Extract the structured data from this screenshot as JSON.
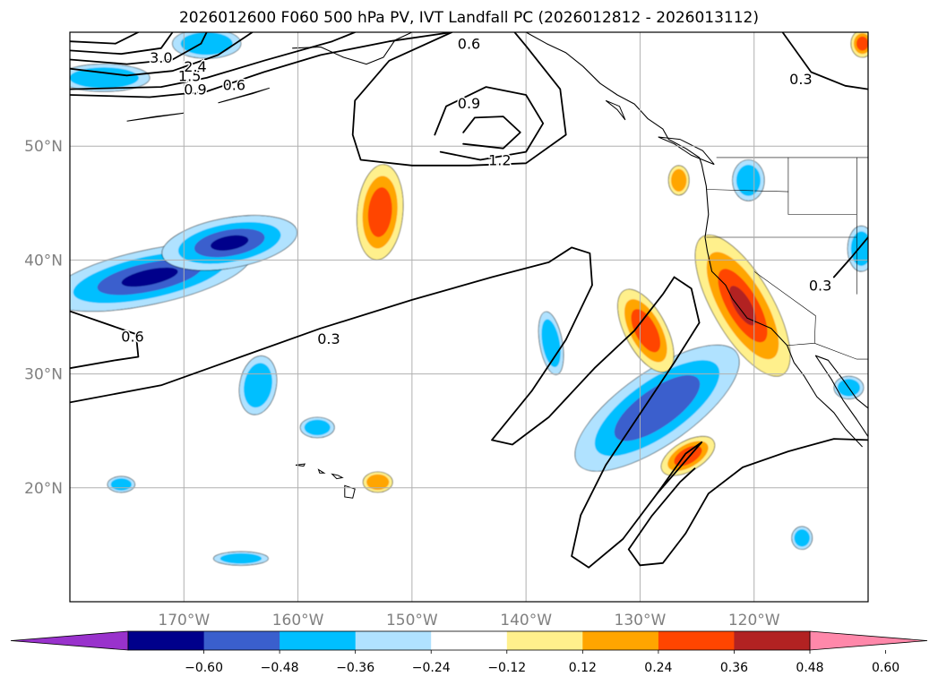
{
  "title": "2026012600 F060 500 hPa PV, IVT Landfall PC (2026012812 - 2026013112)",
  "map": {
    "lon_range": [
      -180,
      -110
    ],
    "lat_range": [
      10,
      60
    ],
    "lon_ticks": [
      {
        "value": -170,
        "label": "170°W"
      },
      {
        "value": -160,
        "label": "160°W"
      },
      {
        "value": -150,
        "label": "150°W"
      },
      {
        "value": -140,
        "label": "140°W"
      },
      {
        "value": -130,
        "label": "130°W"
      },
      {
        "value": -120,
        "label": "120°W"
      }
    ],
    "lat_ticks": [
      {
        "value": 50,
        "label": "50°N"
      },
      {
        "value": 40,
        "label": "40°N"
      },
      {
        "value": 30,
        "label": "30°N"
      },
      {
        "value": 20,
        "label": "20°N"
      }
    ],
    "grid": true
  },
  "pv_contours": {
    "levels": [
      "0.3",
      "0.6",
      "0.9",
      "1.2",
      "1.5",
      "2.4",
      "3.0"
    ],
    "labels": [
      {
        "text": "0.3",
        "lon": -157.3,
        "lat": 33.1
      },
      {
        "text": "0.3",
        "lon": -115.9,
        "lat": 55.9
      },
      {
        "text": "0.3",
        "lon": -114.2,
        "lat": 37.8
      },
      {
        "text": "0.6",
        "lon": -174.5,
        "lat": 33.3
      },
      {
        "text": "0.6",
        "lon": -165.6,
        "lat": 55.4
      },
      {
        "text": "0.6",
        "lon": -145.0,
        "lat": 59.0
      },
      {
        "text": "0.9",
        "lon": -145.0,
        "lat": 53.8
      },
      {
        "text": "0.9",
        "lon": -169.0,
        "lat": 55.0
      },
      {
        "text": "1.2",
        "lon": -142.3,
        "lat": 48.8
      },
      {
        "text": "1.5",
        "lon": -169.5,
        "lat": 56.2
      },
      {
        "text": "2.4",
        "lon": -169.0,
        "lat": 57.0
      },
      {
        "text": "3.0",
        "lon": -172.0,
        "lat": 57.8
      }
    ]
  },
  "colorbar": {
    "colors": [
      "#9932cc",
      "#00008b",
      "#3a5fcd",
      "#00bfff",
      "#b0e2ff",
      "#ffffff",
      "#fff08c",
      "#ffa500",
      "#ff4500",
      "#b22222",
      "#ff88aa"
    ],
    "tick_labels": [
      "−0.60",
      "−0.48",
      "−0.36",
      "−0.24",
      "−0.12",
      "0.12",
      "0.24",
      "0.36",
      "0.48",
      "0.60"
    ],
    "extend": "both"
  },
  "ivt_pc_regions": [
    {
      "sign": "neg",
      "lon": -173,
      "lat": 38.5,
      "rx": 9.0,
      "ry": 2.4,
      "rot": -12,
      "level": 4
    },
    {
      "sign": "neg",
      "lon": -166,
      "lat": 41.5,
      "rx": 6.0,
      "ry": 2.2,
      "rot": -10,
      "level": 4
    },
    {
      "sign": "neg",
      "lon": -128.5,
      "lat": 27.0,
      "rx": 8.5,
      "ry": 3.2,
      "rot": -35,
      "level": 3
    },
    {
      "sign": "neg",
      "lon": -163.5,
      "lat": 29.0,
      "rx": 1.6,
      "ry": 2.6,
      "rot": 10,
      "level": 2
    },
    {
      "sign": "neg",
      "lon": -137.8,
      "lat": 32.7,
      "rx": 1.0,
      "ry": 2.8,
      "rot": -10,
      "level": 2
    },
    {
      "sign": "neg",
      "lon": -120.5,
      "lat": 47.0,
      "rx": 1.4,
      "ry": 1.8,
      "rot": 0,
      "level": 2
    },
    {
      "sign": "neg",
      "lon": -158.3,
      "lat": 25.3,
      "rx": 1.5,
      "ry": 0.9,
      "rot": 0,
      "level": 2
    },
    {
      "sign": "neg",
      "lon": -165.0,
      "lat": 13.8,
      "rx": 2.4,
      "ry": 0.6,
      "rot": 0,
      "level": 2
    },
    {
      "sign": "neg",
      "lon": -175.5,
      "lat": 20.3,
      "rx": 1.2,
      "ry": 0.7,
      "rot": 0,
      "level": 2
    },
    {
      "sign": "neg",
      "lon": -115.8,
      "lat": 15.6,
      "rx": 0.9,
      "ry": 1.0,
      "rot": 0,
      "level": 2
    },
    {
      "sign": "neg",
      "lon": -111.7,
      "lat": 28.8,
      "rx": 1.3,
      "ry": 1.0,
      "rot": 0,
      "level": 2
    },
    {
      "sign": "neg",
      "lon": -110.6,
      "lat": 41.0,
      "rx": 1.2,
      "ry": 2.0,
      "rot": 0,
      "level": 2
    },
    {
      "sign": "neg",
      "lon": -168.0,
      "lat": 59.0,
      "rx": 3.0,
      "ry": 1.3,
      "rot": 0,
      "level": 2
    },
    {
      "sign": "neg",
      "lon": -177.0,
      "lat": 56.0,
      "rx": 4.0,
      "ry": 1.2,
      "rot": 0,
      "level": 2
    },
    {
      "sign": "pos",
      "lon": -121.0,
      "lat": 36.0,
      "rx": 7.0,
      "ry": 2.6,
      "rot": 60,
      "level": 4
    },
    {
      "sign": "pos",
      "lon": -129.5,
      "lat": 33.8,
      "rx": 4.0,
      "ry": 1.8,
      "rot": 62,
      "level": 3
    },
    {
      "sign": "pos",
      "lon": -152.8,
      "lat": 44.2,
      "rx": 2.0,
      "ry": 4.2,
      "rot": 5,
      "level": 3
    },
    {
      "sign": "pos",
      "lon": -125.8,
      "lat": 22.8,
      "rx": 2.6,
      "ry": 1.3,
      "rot": -30,
      "level": 3
    },
    {
      "sign": "pos",
      "lon": -126.6,
      "lat": 47.0,
      "rx": 0.9,
      "ry": 1.3,
      "rot": 0,
      "level": 2
    },
    {
      "sign": "pos",
      "lon": -153.0,
      "lat": 20.5,
      "rx": 1.3,
      "ry": 0.9,
      "rot": 0,
      "level": 2
    },
    {
      "sign": "pos",
      "lon": -110.5,
      "lat": 59.0,
      "rx": 1.0,
      "ry": 1.2,
      "rot": 0,
      "level": 3
    }
  ]
}
